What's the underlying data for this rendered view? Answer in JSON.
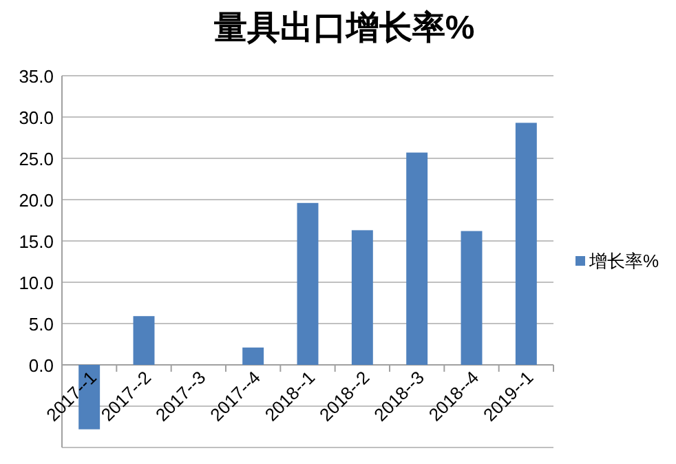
{
  "chart_data": {
    "type": "bar",
    "title": "量具出口增长率%",
    "categories": [
      "2017--1",
      "2017--2",
      "2017--3",
      "2017--4",
      "2018--1",
      "2018--2",
      "2018--3",
      "2018--4",
      "2019--1"
    ],
    "series": [
      {
        "name": "增长率%",
        "color": "#4f81bd",
        "values": [
          -7.8,
          5.9,
          0,
          2.1,
          19.6,
          16.3,
          25.7,
          16.2,
          29.3
        ]
      }
    ],
    "ylim": [
      -10,
      35
    ],
    "yticks": [
      {
        "value": -10,
        "label": null
      },
      {
        "value": -5,
        "label": null
      },
      {
        "value": 0,
        "label": "0.0"
      },
      {
        "value": 5,
        "label": "5.0"
      },
      {
        "value": 10,
        "label": "10.0"
      },
      {
        "value": 15,
        "label": "15.0"
      },
      {
        "value": 20,
        "label": "20.0"
      },
      {
        "value": 25,
        "label": "25.0"
      },
      {
        "value": 30,
        "label": "30.0"
      },
      {
        "value": 35,
        "label": "35.0"
      }
    ],
    "grid": "y",
    "legend": "right"
  }
}
